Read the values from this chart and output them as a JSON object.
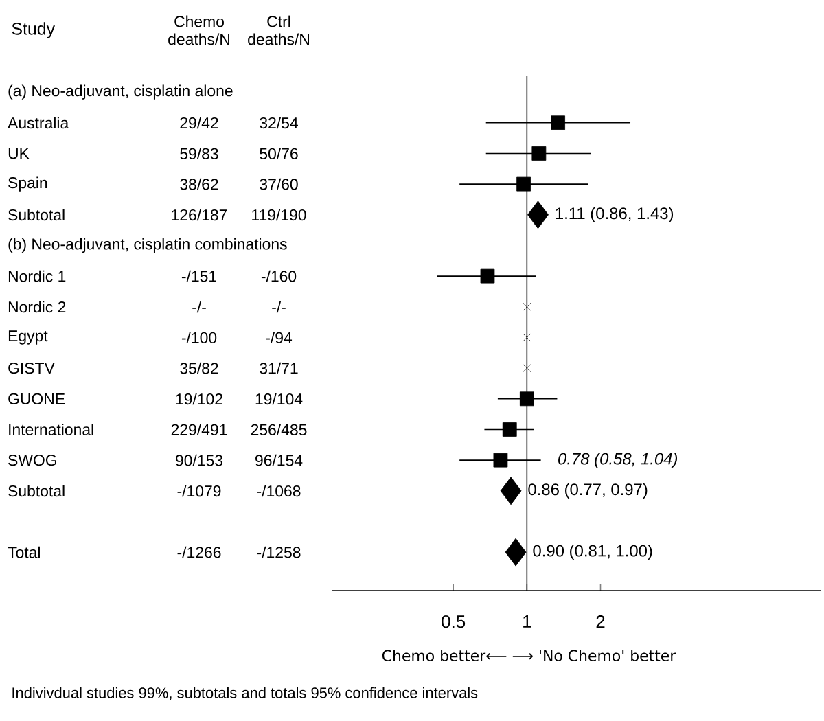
{
  "chart_data": {
    "type": "scatter",
    "orientation": "horizontal",
    "log": "x",
    "xlabel": "Chemo better⟵ ⟶ 'No Chemo' better",
    "categories": [
      "(a) Neo-adjuvant, cisplatin alone",
      "Australia",
      "UK",
      "Spain",
      "Subtotal",
      "(b) Neo-adjuvant, cisplatin combinations",
      "Nordic 1",
      "Nordic 2",
      "Egypt",
      "GISTV",
      "GUONE",
      "International",
      "SWOG",
      "Subtotal",
      null,
      "Total"
    ],
    "xlim": [
      0.16,
      16
    ],
    "xticks": [
      0.5,
      1,
      2
    ],
    "ref_lines": [
      {
        "axis": "x",
        "value": 1
      }
    ],
    "series": [
      {
        "type": "scatter",
        "marker": "square",
        "color": "#000000",
        "values": [
          null,
          1.34,
          1.12,
          0.97,
          null,
          null,
          0.69,
          null,
          null,
          null,
          1.0,
          0.85,
          0.78,
          null,
          null,
          null
        ],
        "errors": [
          null,
          [
            0.68,
            2.65
          ],
          [
            0.68,
            1.83
          ],
          [
            0.53,
            1.78
          ],
          null,
          null,
          [
            0.43,
            1.09
          ],
          null,
          null,
          null,
          [
            0.76,
            1.33
          ],
          [
            0.67,
            1.07
          ],
          [
            0.53,
            1.14
          ],
          null,
          null,
          null
        ],
        "value_labels": [
          null,
          null,
          null,
          null,
          null,
          null,
          null,
          null,
          null,
          null,
          null,
          null,
          "0.78 (0.58, 1.04)",
          null,
          null,
          null
        ]
      },
      {
        "type": "scatter",
        "marker": "diamond",
        "color": "#000000",
        "values": [
          null,
          null,
          null,
          null,
          1.11,
          null,
          null,
          null,
          null,
          null,
          null,
          null,
          null,
          0.86,
          null,
          0.9
        ],
        "value_labels": [
          null,
          null,
          null,
          null,
          "1.11 (0.86, 1.43)",
          null,
          null,
          null,
          null,
          null,
          null,
          null,
          null,
          "0.86 (0.77, 0.97)",
          null,
          "0.90 (0.81, 1.00)"
        ]
      },
      {
        "type": "scatter",
        "marker": "cross",
        "color": "#000000",
        "values": [
          null,
          null,
          null,
          null,
          null,
          null,
          null,
          1,
          1,
          1,
          null,
          null,
          null,
          null,
          null,
          null
        ]
      }
    ],
    "annotations": [
      "Study",
      "Chemo deaths/N",
      "Ctrl deaths/N",
      "Indivivdual studies 99%, subtotals and totals 95% confidence intervals",
      "29/42",
      "32/54",
      "59/83",
      "50/76",
      "38/62",
      "37/60",
      "126/187",
      "119/190",
      "-/151",
      "-/160",
      "-/-",
      "-/-",
      "-/100",
      "-/94",
      "35/82",
      "31/71",
      "19/102",
      "19/104",
      "229/491",
      "256/485",
      "90/153",
      "96/154",
      "-/1079",
      "-/1068",
      "-/1266",
      "-/1258"
    ]
  }
}
